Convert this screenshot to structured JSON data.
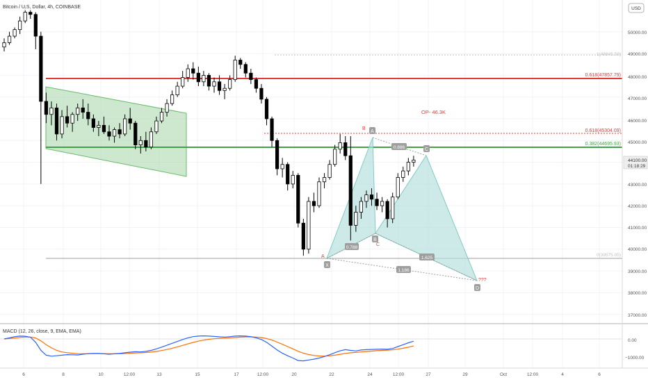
{
  "header": {
    "symbol": "Bitcoin / U.S. Dollar, 4h, COINBASE",
    "currency_button": "USD"
  },
  "macd": {
    "label": "MACD (12, 26, close, 9, EMA, EMA)",
    "ticks": [
      "0.00",
      "−1000.00"
    ]
  },
  "price_axis": {
    "ticks": [
      "50000.00",
      "49000.00",
      "48000.00",
      "47000.00",
      "46000.00",
      "45000.00",
      "43000.00",
      "42000.00",
      "41000.00",
      "40000.00",
      "39000.00",
      "38000.00",
      "37000.00"
    ],
    "last_price": "44100.00",
    "countdown": "01:18:29"
  },
  "time_axis": {
    "ticks": [
      "6",
      "8",
      "10",
      "12:00",
      "13",
      "15",
      "17",
      "12:00",
      "20",
      "22",
      "24",
      "12:00",
      "27",
      "29",
      "Oct",
      "12:00",
      "4",
      "6"
    ]
  },
  "levels": {
    "fib_top": "1(48845.59)",
    "red_main": "0.618(47857.79)",
    "red_dotted": "0.618(45304.09)",
    "green": "0.382(44695.93)",
    "fib_bottom": "0(39575.05)"
  },
  "annotations": {
    "target": "OP- 46.3K",
    "question": "???",
    "pt_x": "X",
    "pt_a": "A",
    "pt_b": "B",
    "pt_c": "C",
    "pt_d": "D",
    "lbl_A": "A",
    "lbl_B": "B",
    "lbl_C": "C",
    "ratio_xb": "0.788",
    "ratio_ac": "0.886",
    "ratio_bd": "1.625",
    "ratio_xd": "1.186"
  },
  "colors": {
    "up": "#26a69a",
    "down": "#000000",
    "red_line": "#e53935",
    "green_line": "#43a047",
    "channel": "#a5d6a7",
    "pattern": "#b2dfdb",
    "macd": "#2962ff",
    "signal": "#ff6d00"
  },
  "chart_data": {
    "type": "candlestick",
    "title": "Bitcoin / U.S. Dollar, 4h, COINBASE",
    "ylim": [
      36500,
      51200
    ],
    "ohlc": [
      [
        49300,
        49700,
        49100,
        49500
      ],
      [
        49500,
        50000,
        49400,
        49800
      ],
      [
        49800,
        50200,
        49700,
        50100
      ],
      [
        50100,
        50700,
        49900,
        50500
      ],
      [
        50500,
        51200,
        50400,
        50900
      ],
      [
        50900,
        51100,
        50600,
        50800
      ],
      [
        50800,
        50900,
        49200,
        49800
      ],
      [
        49800,
        50000,
        43000,
        46800
      ],
      [
        46800,
        47200,
        45800,
        46200
      ],
      [
        46200,
        46800,
        45700,
        46500
      ],
      [
        46500,
        46700,
        45000,
        45300
      ],
      [
        45300,
        46400,
        45100,
        46100
      ],
      [
        46100,
        46600,
        45600,
        45800
      ],
      [
        45800,
        46300,
        45400,
        46200
      ],
      [
        46200,
        46700,
        45900,
        46500
      ],
      [
        46500,
        46900,
        46000,
        46300
      ],
      [
        46300,
        46700,
        45700,
        46000
      ],
      [
        46000,
        46200,
        45400,
        45600
      ],
      [
        45600,
        45900,
        45200,
        45700
      ],
      [
        45700,
        46100,
        45300,
        45400
      ],
      [
        45400,
        45700,
        45000,
        45200
      ],
      [
        45200,
        45600,
        44900,
        45500
      ],
      [
        45500,
        45800,
        45100,
        45300
      ],
      [
        45300,
        46200,
        45200,
        46000
      ],
      [
        46000,
        46500,
        45500,
        45800
      ],
      [
        45800,
        45900,
        44600,
        44800
      ],
      [
        44800,
        45200,
        44400,
        45000
      ],
      [
        45000,
        45400,
        44500,
        44700
      ],
      [
        44700,
        45600,
        44600,
        45400
      ],
      [
        45400,
        46100,
        45300,
        45900
      ],
      [
        45900,
        46500,
        45800,
        46300
      ],
      [
        46300,
        46900,
        46100,
        46700
      ],
      [
        46700,
        47300,
        46600,
        47100
      ],
      [
        47100,
        47700,
        47000,
        47500
      ],
      [
        47500,
        48200,
        47400,
        47900
      ],
      [
        47900,
        48500,
        47700,
        48300
      ],
      [
        48300,
        48600,
        47800,
        48100
      ],
      [
        48100,
        48400,
        47500,
        47700
      ],
      [
        47700,
        48200,
        47500,
        48000
      ],
      [
        48000,
        48100,
        47300,
        47500
      ],
      [
        47500,
        47900,
        47200,
        47700
      ],
      [
        47700,
        48000,
        47100,
        47300
      ],
      [
        47300,
        47600,
        46900,
        47400
      ],
      [
        47400,
        48000,
        47300,
        47800
      ],
      [
        47800,
        48900,
        47700,
        48700
      ],
      [
        48700,
        48800,
        48300,
        48500
      ],
      [
        48500,
        48600,
        47900,
        48100
      ],
      [
        48100,
        48300,
        47600,
        47800
      ],
      [
        47800,
        47900,
        47200,
        47400
      ],
      [
        47400,
        47600,
        46700,
        46900
      ],
      [
        46900,
        47000,
        45700,
        46000
      ],
      [
        46000,
        46100,
        44700,
        45000
      ],
      [
        45000,
        45100,
        43400,
        43700
      ],
      [
        43700,
        44200,
        43300,
        43900
      ],
      [
        43900,
        44000,
        42700,
        43000
      ],
      [
        43000,
        43600,
        42800,
        43400
      ],
      [
        43400,
        43500,
        41000,
        41200
      ],
      [
        41200,
        41400,
        39700,
        40000
      ],
      [
        40000,
        42400,
        39800,
        42200
      ],
      [
        42200,
        42600,
        41700,
        42000
      ],
      [
        42000,
        43300,
        41900,
        43100
      ],
      [
        43100,
        43500,
        42800,
        43300
      ],
      [
        43300,
        44100,
        43200,
        43900
      ],
      [
        43900,
        44800,
        43800,
        44600
      ],
      [
        44600,
        45300,
        44400,
        44900
      ],
      [
        44900,
        45200,
        44100,
        44300
      ],
      [
        44300,
        45200,
        40400,
        41100
      ],
      [
        41100,
        42000,
        40800,
        41700
      ],
      [
        41700,
        42400,
        41400,
        42200
      ],
      [
        42200,
        42700,
        41900,
        42500
      ],
      [
        42500,
        42800,
        42000,
        42300
      ],
      [
        42300,
        42600,
        41800,
        42000
      ],
      [
        42000,
        42400,
        41700,
        42200
      ],
      [
        42200,
        42300,
        41000,
        41400
      ],
      [
        41400,
        42600,
        41200,
        42400
      ],
      [
        42400,
        43500,
        42300,
        43300
      ],
      [
        43300,
        43800,
        43100,
        43600
      ],
      [
        43600,
        44200,
        43400,
        44000
      ],
      [
        44000,
        44300,
        43800,
        44100
      ]
    ],
    "macd": [
      0,
      60,
      120,
      150,
      140,
      90,
      -180,
      -600,
      -850,
      -900,
      -880,
      -850,
      -820,
      -830,
      -840,
      -800,
      -770,
      -760,
      -760,
      -780,
      -800,
      -780,
      -760,
      -720,
      -690,
      -670,
      -680,
      -650,
      -600,
      -520,
      -430,
      -330,
      -230,
      -130,
      -30,
      60,
      120,
      150,
      160,
      150,
      130,
      110,
      100,
      120,
      150,
      160,
      150,
      120,
      60,
      -30,
      -180,
      -380,
      -580,
      -750,
      -880,
      -1000,
      -1130,
      -1150,
      -1100,
      -1060,
      -1000,
      -920,
      -830,
      -720,
      -620,
      -560,
      -600,
      -630,
      -580,
      -560,
      -550,
      -540,
      -530,
      -540,
      -500,
      -400,
      -300,
      -200,
      -120
    ],
    "signal": [
      0,
      20,
      50,
      80,
      100,
      100,
      50,
      -100,
      -300,
      -470,
      -600,
      -680,
      -720,
      -750,
      -770,
      -775,
      -775,
      -772,
      -770,
      -772,
      -777,
      -778,
      -775,
      -765,
      -750,
      -735,
      -724,
      -709,
      -687,
      -653,
      -608,
      -552,
      -488,
      -416,
      -339,
      -259,
      -183,
      -116,
      -61,
      -19,
      10,
      30,
      44,
      59,
      77,
      94,
      105,
      108,
      98,
      72,
      22,
      -58,
      -162,
      -280,
      -400,
      -520,
      -642,
      -744,
      -815,
      -864,
      -891,
      -897,
      -883,
      -851,
      -805,
      -756,
      -725,
      -706,
      -681,
      -657,
      -635,
      -616,
      -599,
      -587,
      -570,
      -536,
      -489,
      -431,
      -369
    ]
  }
}
